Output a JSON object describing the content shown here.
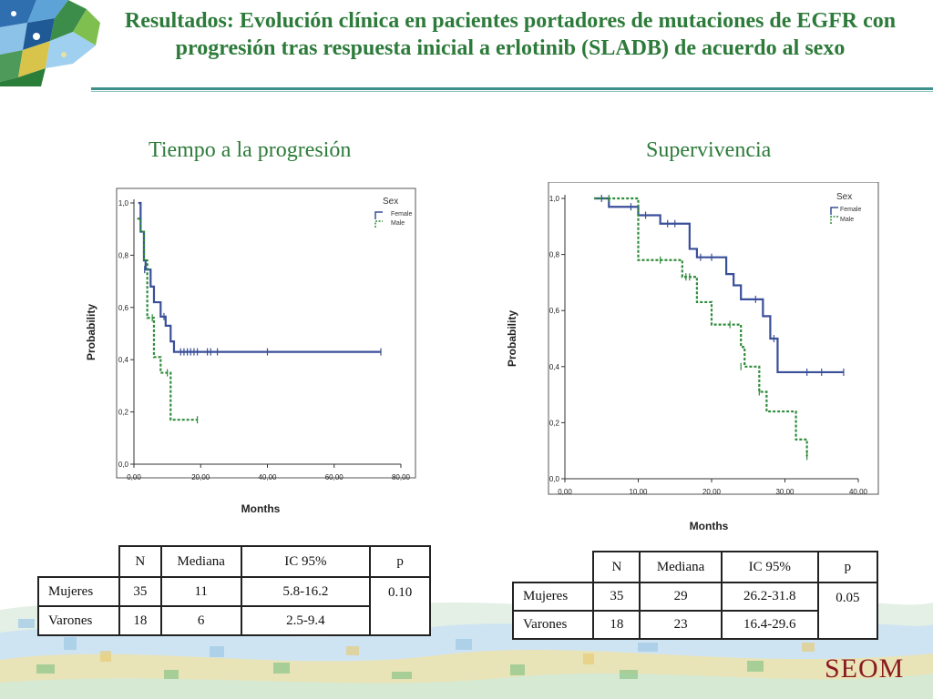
{
  "header": {
    "title": "Resultados: Evolución clínica en pacientes portadores de mutaciones de EGFR con progresión tras respuesta inicial a erlotinib (SLADB) de acuerdo al sexo"
  },
  "logo": {
    "text": "SEOM"
  },
  "colors": {
    "female": "#3a4f9a",
    "male": "#2e8b3a",
    "title": "#2d7b3a",
    "logo": "#8a1a22"
  },
  "chart_data": [
    {
      "type": "line",
      "title": "Tiempo a la progresión",
      "xlabel": "Months",
      "ylabel": "Probability",
      "xlim": [
        0,
        80
      ],
      "ylim": [
        0,
        1
      ],
      "x_ticks": [
        "0,00",
        "20,00",
        "40,00",
        "60,00",
        "80,00"
      ],
      "y_ticks": [
        "0,0",
        "0,2",
        "0,4",
        "0,6",
        "0,8",
        "1,0"
      ],
      "legend": {
        "title": "Sex",
        "entries": [
          "Female",
          "Male"
        ],
        "placement": "top-right"
      },
      "grid": false,
      "series": [
        {
          "name": "Female",
          "steps": [
            [
              1.3,
              1.0
            ],
            [
              2.0,
              0.89
            ],
            [
              3.0,
              0.78
            ],
            [
              3.5,
              0.745
            ],
            [
              5.0,
              0.68
            ],
            [
              6.0,
              0.62
            ],
            [
              8.0,
              0.565
            ],
            [
              9.5,
              0.53
            ],
            [
              11.0,
              0.47
            ],
            [
              12.0,
              0.43
            ],
            [
              74.0,
              0.43
            ]
          ],
          "censored": [
            [
              3.2,
              0.745
            ],
            [
              9.0,
              0.565
            ],
            [
              14.0,
              0.43
            ],
            [
              15.0,
              0.43
            ],
            [
              16.0,
              0.43
            ],
            [
              17.0,
              0.43
            ],
            [
              18.0,
              0.43
            ],
            [
              19.0,
              0.43
            ],
            [
              22.0,
              0.43
            ],
            [
              23.0,
              0.43
            ],
            [
              25.0,
              0.43
            ],
            [
              40.0,
              0.43
            ],
            [
              74.0,
              0.43
            ]
          ]
        },
        {
          "name": "Male",
          "steps": [
            [
              1.0,
              0.94
            ],
            [
              2.0,
              0.89
            ],
            [
              3.0,
              0.78
            ],
            [
              4.0,
              0.56
            ],
            [
              6.0,
              0.41
            ],
            [
              8.0,
              0.35
            ],
            [
              11.0,
              0.17
            ],
            [
              19.0,
              0.17
            ]
          ],
          "censored": [
            [
              5.5,
              0.56
            ],
            [
              10.0,
              0.35
            ],
            [
              19.0,
              0.17
            ]
          ]
        }
      ]
    },
    {
      "type": "line",
      "title": "Supervivencia",
      "xlabel": "Months",
      "ylabel": "Probability",
      "xlim": [
        0,
        40
      ],
      "ylim": [
        0,
        1
      ],
      "x_ticks": [
        "0,00",
        "10,00",
        "20,00",
        "30,00",
        "40,00"
      ],
      "y_ticks": [
        "0,0",
        "0,2",
        "0,4",
        "0,6",
        "0,8",
        "1,0"
      ],
      "legend": {
        "title": "Sex",
        "entries": [
          "Female",
          "Male"
        ],
        "placement": "top-right"
      },
      "grid": false,
      "series": [
        {
          "name": "Female",
          "steps": [
            [
              4.0,
              1.0
            ],
            [
              6.0,
              0.97
            ],
            [
              10.0,
              0.94
            ],
            [
              13.0,
              0.91
            ],
            [
              17.0,
              0.82
            ],
            [
              18.0,
              0.79
            ],
            [
              22.0,
              0.73
            ],
            [
              23.0,
              0.69
            ],
            [
              24.0,
              0.64
            ],
            [
              27.0,
              0.58
            ],
            [
              28.0,
              0.5
            ],
            [
              29.0,
              0.38
            ],
            [
              38.0,
              0.38
            ]
          ],
          "censored": [
            [
              5.0,
              1.0
            ],
            [
              9.0,
              0.97
            ],
            [
              11.0,
              0.94
            ],
            [
              14.0,
              0.91
            ],
            [
              15.0,
              0.91
            ],
            [
              18.5,
              0.79
            ],
            [
              20.0,
              0.79
            ],
            [
              26.0,
              0.64
            ],
            [
              28.5,
              0.5
            ],
            [
              33.0,
              0.38
            ],
            [
              35.0,
              0.38
            ],
            [
              38.0,
              0.38
            ]
          ]
        },
        {
          "name": "Male",
          "steps": [
            [
              4.0,
              1.0
            ],
            [
              10.0,
              0.78
            ],
            [
              16.0,
              0.72
            ],
            [
              18.0,
              0.63
            ],
            [
              20.0,
              0.55
            ],
            [
              24.0,
              0.47
            ],
            [
              24.5,
              0.4
            ],
            [
              26.5,
              0.31
            ],
            [
              27.5,
              0.24
            ],
            [
              31.5,
              0.14
            ],
            [
              33.0,
              0.1
            ],
            [
              33.0,
              0.08
            ]
          ],
          "censored": [
            [
              6.0,
              1.0
            ],
            [
              13.0,
              0.78
            ],
            [
              16.5,
              0.72
            ],
            [
              17.0,
              0.72
            ],
            [
              22.5,
              0.55
            ],
            [
              24.0,
              0.4
            ],
            [
              26.5,
              0.31
            ],
            [
              33.0,
              0.08
            ]
          ]
        }
      ]
    }
  ],
  "tables": [
    {
      "headers": [
        "N",
        "Mediana",
        "IC 95%",
        "p"
      ],
      "rows": [
        {
          "label": "Mujeres",
          "n": "35",
          "median": "11",
          "ci": "5.8-16.2"
        },
        {
          "label": "Varones",
          "n": "18",
          "median": "6",
          "ci": "2.5-9.4"
        }
      ],
      "p": "0.10"
    },
    {
      "headers": [
        "N",
        "Mediana",
        "IC 95%",
        "p"
      ],
      "rows": [
        {
          "label": "Mujeres",
          "n": "35",
          "median": "29",
          "ci": "26.2-31.8"
        },
        {
          "label": "Varones",
          "n": "18",
          "median": "23",
          "ci": "16.4-29.6"
        }
      ],
      "p": "0.05"
    }
  ]
}
